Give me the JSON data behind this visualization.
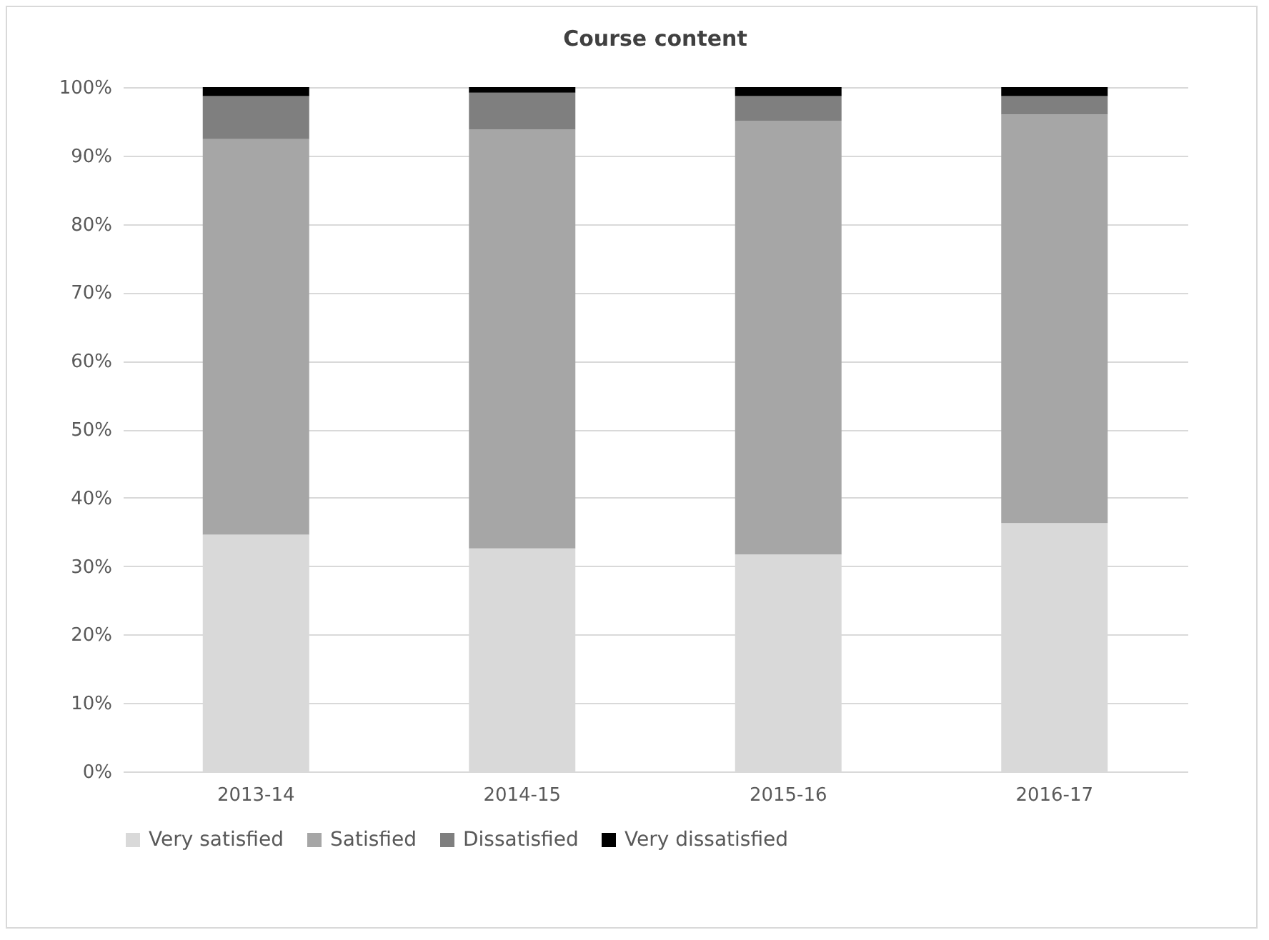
{
  "chart_data": {
    "type": "bar",
    "title": "Course content",
    "stacked": true,
    "categories": [
      "2013-14",
      "2014-15",
      "2015-16",
      "2016-17"
    ],
    "series": [
      {
        "name": "Very satisfied",
        "color": "#d9d9d9",
        "values": [
          34.6,
          32.6,
          31.7,
          36.3
        ]
      },
      {
        "name": "Satisfied",
        "color": "#a6a6a6",
        "values": [
          57.8,
          61.2,
          63.4,
          59.7
        ]
      },
      {
        "name": "Dissatisfied",
        "color": "#7f7f7f",
        "values": [
          6.3,
          5.4,
          3.6,
          2.7
        ]
      },
      {
        "name": "Very dissatisfied",
        "color": "#000000",
        "values": [
          1.3,
          0.8,
          1.3,
          1.3
        ]
      }
    ],
    "ylim": [
      0,
      100
    ],
    "yticks": [
      {
        "value": 0,
        "label": "0%"
      },
      {
        "value": 10,
        "label": "10%"
      },
      {
        "value": 20,
        "label": "20%"
      },
      {
        "value": 30,
        "label": "30%"
      },
      {
        "value": 40,
        "label": "40%"
      },
      {
        "value": 50,
        "label": "50%"
      },
      {
        "value": 60,
        "label": "60%"
      },
      {
        "value": 70,
        "label": "70%"
      },
      {
        "value": 80,
        "label": "80%"
      },
      {
        "value": 90,
        "label": "90%"
      },
      {
        "value": 100,
        "label": "100%"
      }
    ],
    "grid": "y",
    "legend": "bottom"
  }
}
